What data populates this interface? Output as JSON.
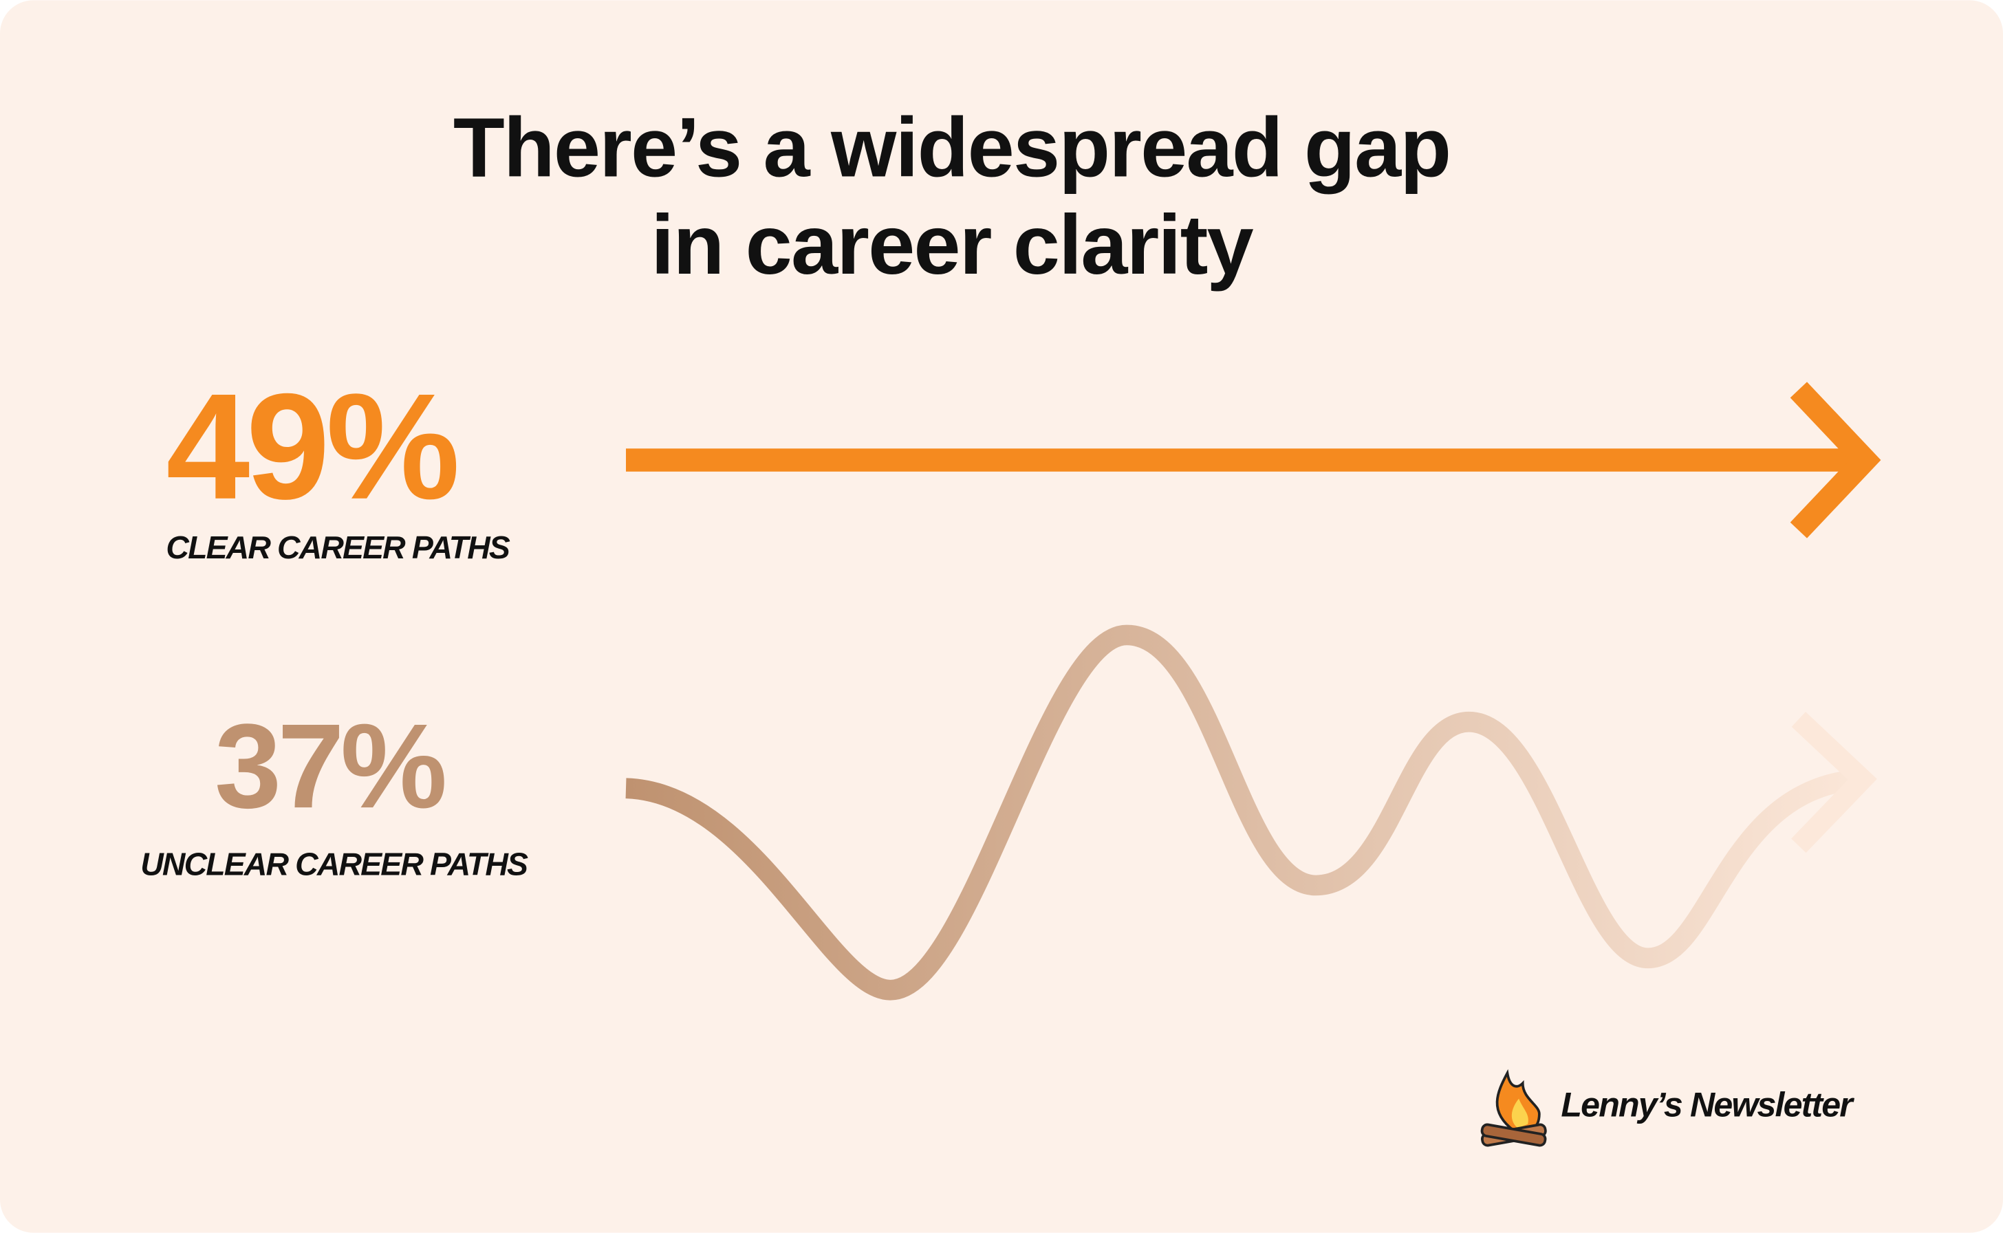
{
  "title": [
    "There’s a widespread gap",
    "in career clarity"
  ],
  "stats": [
    {
      "value": "49%",
      "label": "CLEAR CAREER PATHS"
    },
    {
      "value": "37%",
      "label": "UNCLEAR CAREER PATHS"
    }
  ],
  "brand": "Lenny’s Newsletter"
}
